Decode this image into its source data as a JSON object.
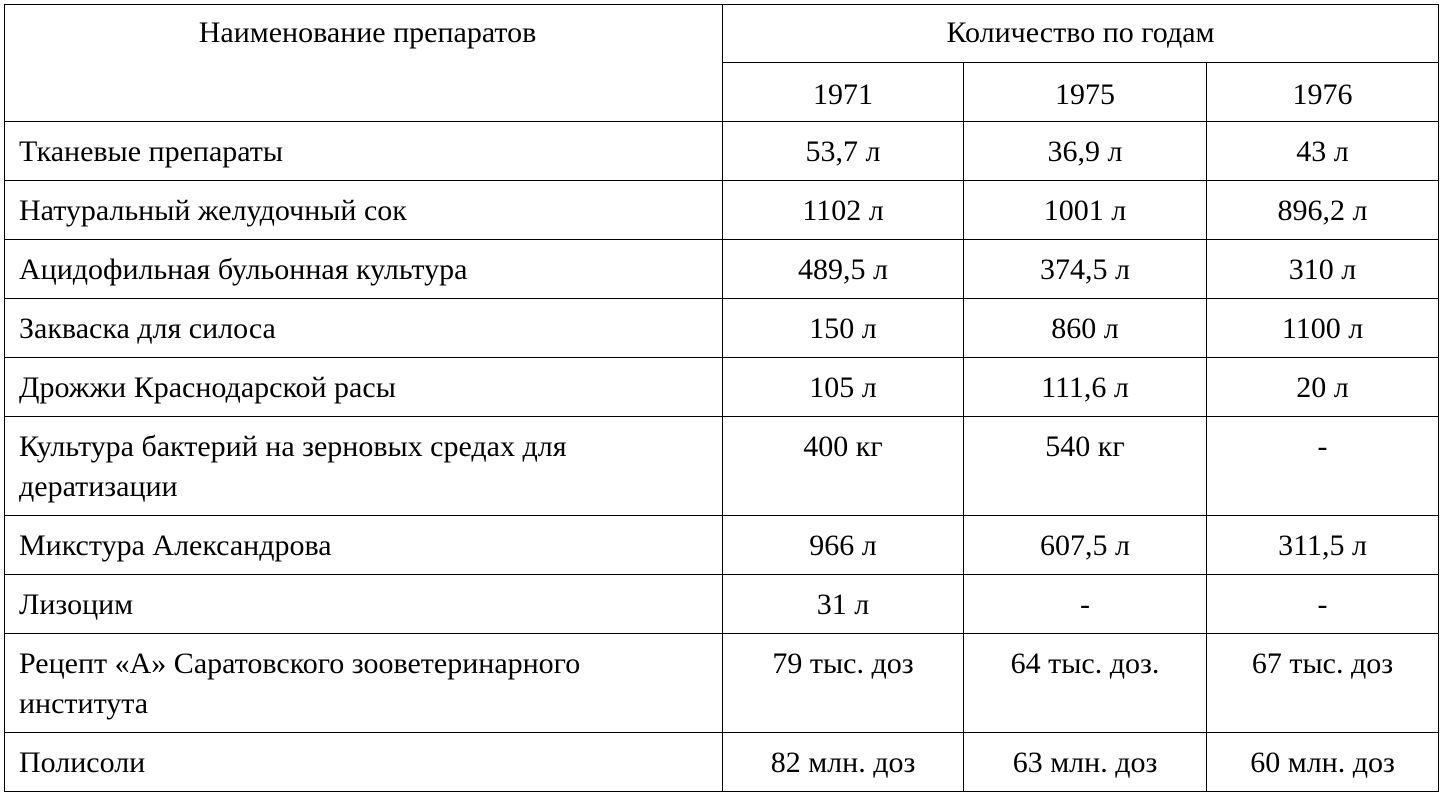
{
  "header": {
    "name_column": "Наименование препаратов",
    "group": "Количество по годам",
    "years": [
      "1971",
      "1975",
      "1976"
    ]
  },
  "table": {
    "rows": [
      [
        "Тканевые препараты",
        "53,7 л",
        "36,9 л",
        "43 л"
      ],
      [
        "Натуральный желудочный сок",
        "1102 л",
        "1001 л",
        "896,2 л"
      ],
      [
        "Ацидофильная бульонная культура",
        "489,5 л",
        "374,5 л",
        "310 л"
      ],
      [
        "Закваска для силоса",
        "150 л",
        "860 л",
        "1100 л"
      ],
      [
        "Дрожжи Краснодарской расы",
        "105 л",
        "111,6 л",
        "20 л"
      ],
      [
        "Культура бактерий на зерновых средах для дератизации",
        "400 кг",
        "540 кг",
        "-"
      ],
      [
        "Микстура Александрова",
        "966 л",
        "607,5 л",
        "311,5 л"
      ],
      [
        "Лизоцим",
        "31 л",
        "-",
        "-"
      ],
      [
        "Рецепт «А» Саратовского зооветеринарного института",
        "79 тыс. доз",
        "64 тыс. доз.",
        "67 тыс. доз"
      ],
      [
        "Полисоли",
        "82 млн. доз",
        "63 млн. доз",
        "60 млн. доз"
      ]
    ]
  }
}
